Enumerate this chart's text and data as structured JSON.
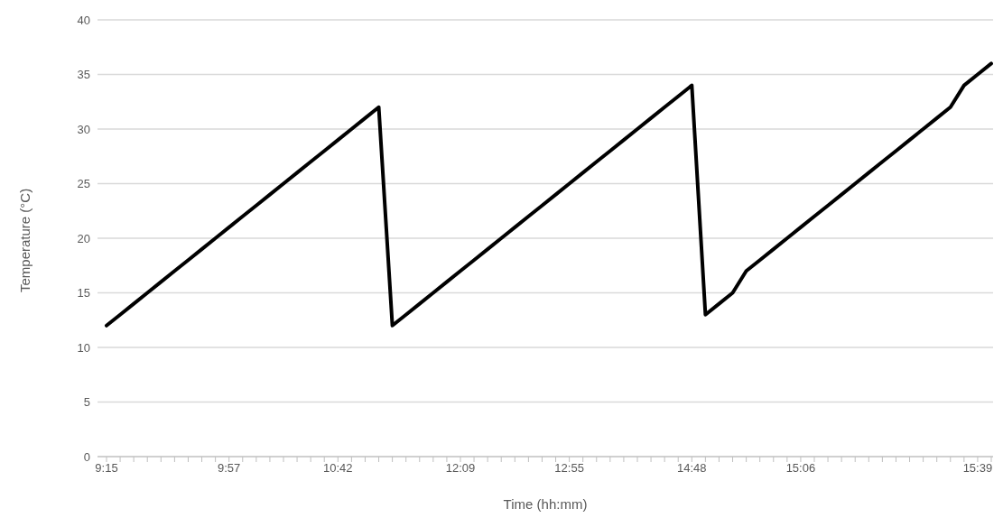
{
  "chart_data": {
    "type": "line",
    "xlabel": "Time (hh:mm)",
    "ylabel": "Temperature (°C)",
    "categories": [
      "9:15",
      null,
      null,
      null,
      null,
      null,
      null,
      null,
      null,
      "9:57",
      null,
      null,
      null,
      null,
      null,
      null,
      null,
      "10:42",
      null,
      null,
      null,
      null,
      null,
      null,
      null,
      null,
      "12:09",
      null,
      null,
      null,
      null,
      null,
      null,
      null,
      "12:55",
      null,
      null,
      null,
      null,
      null,
      null,
      null,
      null,
      "14:48",
      null,
      null,
      null,
      null,
      null,
      null,
      null,
      "15:06",
      null,
      null,
      null,
      null,
      null,
      null,
      null,
      null,
      null,
      null,
      null,
      null,
      "15:39",
      null
    ],
    "series": [
      {
        "color": "#000000",
        "values": [
          12,
          13,
          14,
          15,
          16,
          17,
          18,
          19,
          20,
          21,
          22,
          23,
          24,
          25,
          26,
          27,
          28,
          29,
          30,
          31,
          32,
          12,
          13,
          14,
          15,
          16,
          17,
          18,
          19,
          20,
          21,
          22,
          23,
          24,
          25,
          26,
          27,
          28,
          29,
          30,
          31,
          32,
          33,
          34,
          13,
          14,
          15,
          17,
          18,
          19,
          20,
          21,
          22,
          23,
          24,
          25,
          26,
          27,
          28,
          29,
          30,
          31,
          32,
          34,
          35,
          36
        ]
      }
    ],
    "ylim": [
      0,
      40
    ],
    "yticks": [
      0,
      5,
      10,
      15,
      20,
      25,
      30,
      35,
      40
    ],
    "grid": "y",
    "legend": false,
    "marker": "none",
    "line_style": "solid"
  }
}
